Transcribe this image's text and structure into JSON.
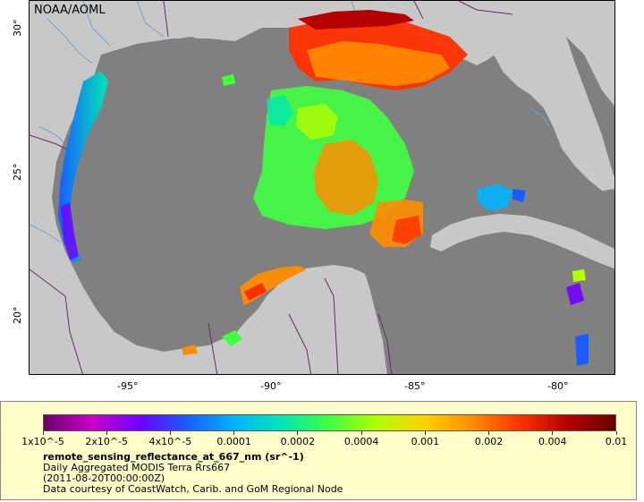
{
  "credit": "NOAA/AOML",
  "map": {
    "lon_labels": [
      "-95°",
      "-90°",
      "-85°",
      "-80°"
    ],
    "lat_labels": [
      "30°",
      "25°",
      "20°"
    ],
    "colors": {
      "land": "#c8c8c8",
      "water_nodata": "#808080",
      "border": "#6b2a6b",
      "river": "#6fa0d6"
    }
  },
  "legend": {
    "scale": "log",
    "ticks": [
      "1x10^-5",
      "2x10^-5",
      "4x10^-5",
      "0.0001",
      "0.0002",
      "0.0004",
      "0.001",
      "0.002",
      "0.004",
      "0.01"
    ],
    "variable": "remote_sensing_reflectance_at_667_nm (sr^-1)",
    "product": "Daily Aggregated MODIS Terra Rrs667",
    "time": "(2011-08-20T00:00:00Z)",
    "source": "Data courtesy of CoastWatch, Carib. and GoM Regional Node",
    "colormap": [
      "#6a006a",
      "#c800c8",
      "#7000ff",
      "#1a5cff",
      "#00b4ff",
      "#00e6b4",
      "#40ff40",
      "#b4ff00",
      "#ffd200",
      "#ff8c00",
      "#ff3000",
      "#b40000",
      "#6a0000"
    ]
  }
}
